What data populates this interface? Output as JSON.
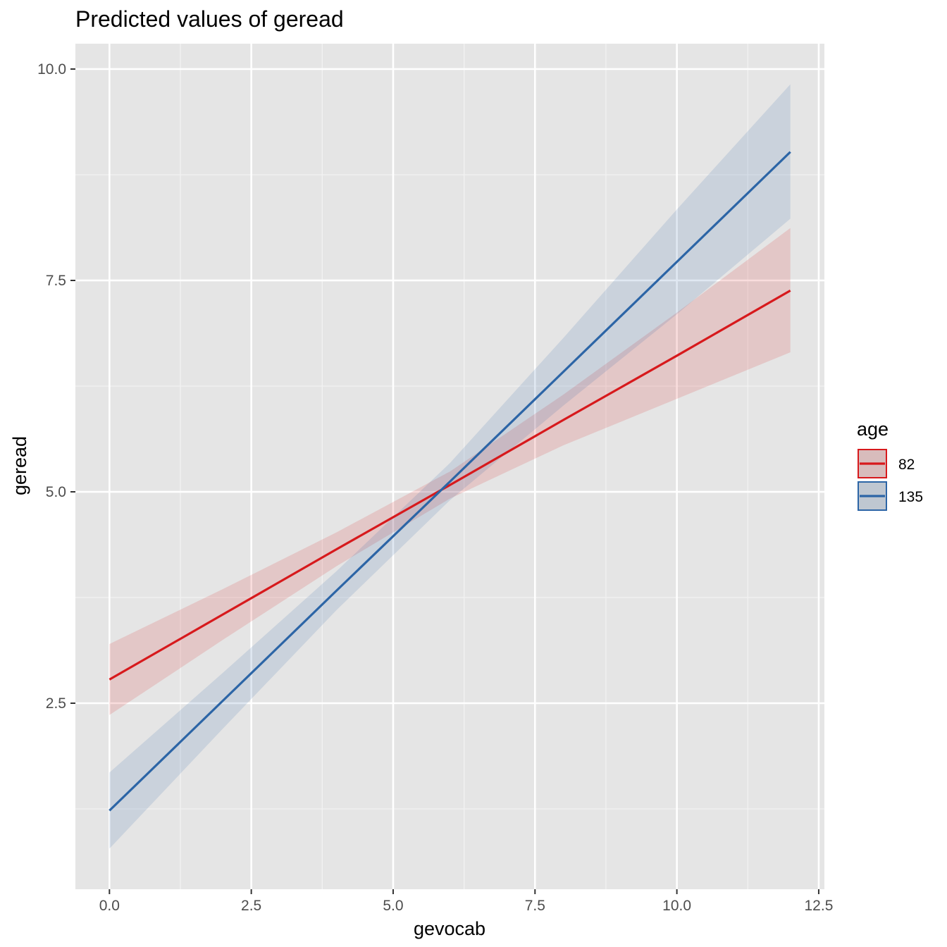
{
  "chart_data": {
    "type": "line",
    "title": "Predicted values of geread",
    "xlabel": "gevocab",
    "ylabel": "geread",
    "xlim": [
      -0.6,
      12.6
    ],
    "ylim": [
      0.3,
      10.3
    ],
    "x_ticks": [
      0,
      2.5,
      5,
      7.5,
      10,
      12.5
    ],
    "x_tick_labels": [
      "0.0",
      "2.5",
      "5.0",
      "7.5",
      "10.0",
      "12.5"
    ],
    "y_ticks": [
      2.5,
      5,
      7.5,
      10
    ],
    "y_tick_labels": [
      "2.5",
      "5.0",
      "7.5",
      "10.0"
    ],
    "grid": true,
    "legend": {
      "title": "age",
      "position": "right"
    },
    "series": [
      {
        "name": "82",
        "color": "#d7191c",
        "x": [
          0,
          2,
          4,
          6,
          8,
          10,
          12
        ],
        "y": [
          2.78,
          3.55,
          4.32,
          5.08,
          5.85,
          6.61,
          7.38
        ],
        "lower": [
          2.36,
          3.25,
          4.12,
          4.92,
          5.55,
          6.1,
          6.65
        ],
        "upper": [
          3.2,
          3.85,
          4.52,
          5.24,
          6.15,
          7.12,
          8.12
        ]
      },
      {
        "name": "135",
        "color": "#2c65a6",
        "x": [
          0,
          2,
          4,
          6,
          8,
          10,
          12
        ],
        "y": [
          1.23,
          2.53,
          3.83,
          5.12,
          6.42,
          7.72,
          9.02
        ],
        "lower": [
          0.78,
          2.2,
          3.6,
          4.9,
          6.02,
          7.1,
          8.23
        ],
        "upper": [
          1.68,
          2.86,
          4.06,
          5.34,
          6.82,
          8.34,
          9.82
        ]
      }
    ]
  }
}
